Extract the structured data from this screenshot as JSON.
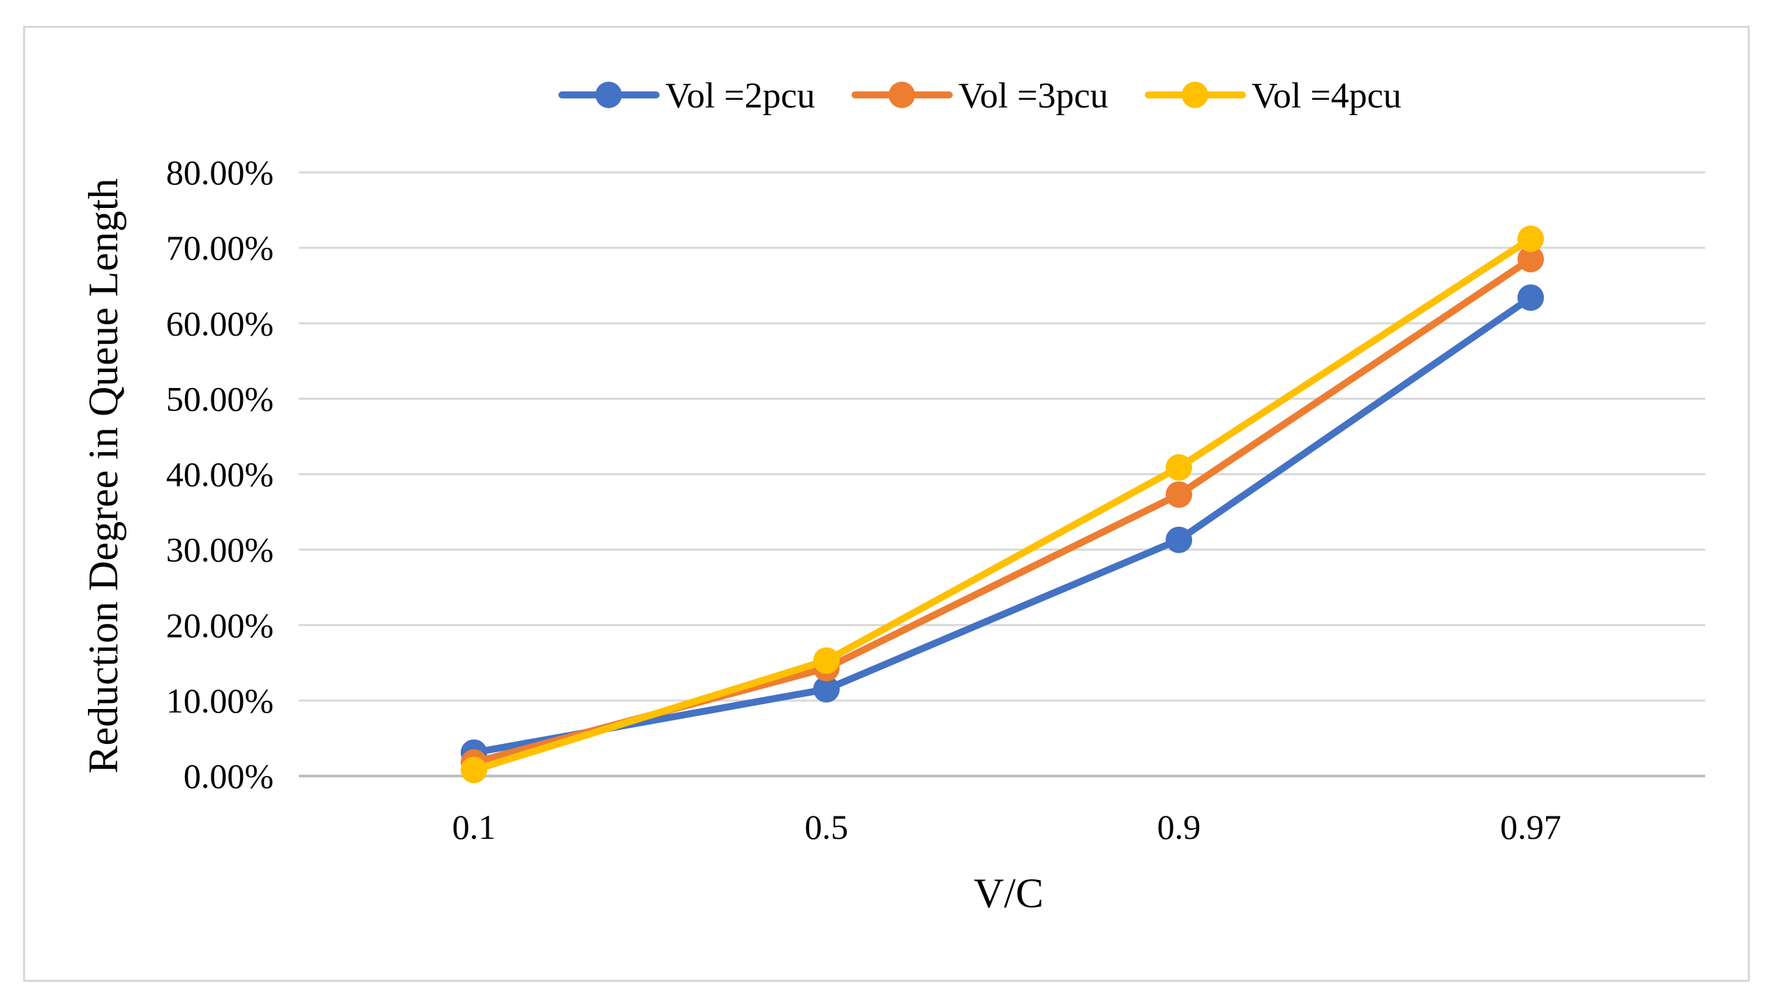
{
  "chart_data": {
    "type": "line",
    "title": "",
    "xlabel": "V/C",
    "ylabel": "Reduction Degree in Queue Length",
    "categories": [
      "0.1",
      "0.5",
      "0.9",
      "0.97"
    ],
    "ylim": [
      0,
      0.8
    ],
    "yticks": [
      0,
      0.1,
      0.2,
      0.3,
      0.4,
      0.5,
      0.6,
      0.7,
      0.8
    ],
    "ytick_labels": [
      "0.00%",
      "10.00%",
      "20.00%",
      "30.00%",
      "40.00%",
      "50.00%",
      "60.00%",
      "70.00%",
      "80.00%"
    ],
    "grid": true,
    "legend_position": "top-center",
    "series": [
      {
        "name": "Vol =2pcu",
        "color": "#4472C4",
        "values": [
          0.031,
          0.115,
          0.313,
          0.634
        ]
      },
      {
        "name": "Vol =3pcu",
        "color": "#ED7D31",
        "values": [
          0.018,
          0.143,
          0.373,
          0.685
        ]
      },
      {
        "name": "Vol =4pcu",
        "color": "#FFC000",
        "values": [
          0.008,
          0.153,
          0.409,
          0.712
        ]
      }
    ]
  }
}
